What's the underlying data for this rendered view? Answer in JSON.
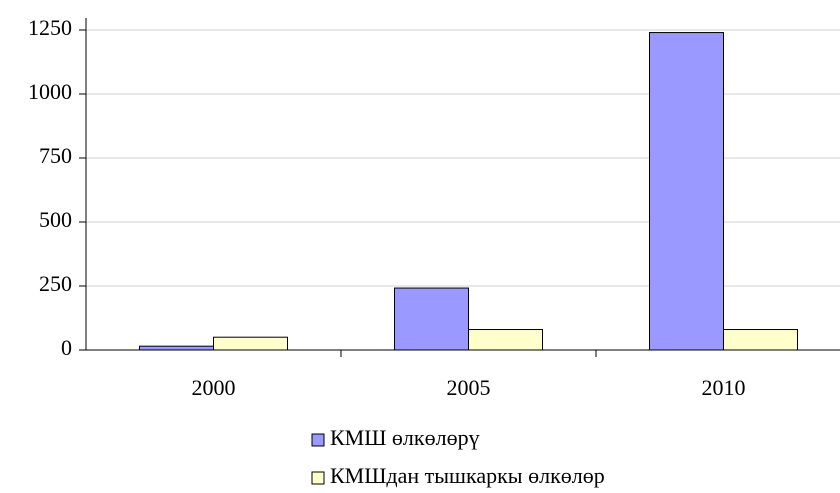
{
  "chart_data": {
    "type": "bar",
    "categories": [
      "2000",
      "2005",
      "2010"
    ],
    "series": [
      {
        "name": "КМШ өлкөлөрү",
        "color": "#9999ff",
        "values": [
          15,
          242,
          1240
        ]
      },
      {
        "name": "КМШдан тышкаркы өлкөлөр",
        "color": "#ffffcc",
        "values": [
          50,
          80,
          80
        ]
      }
    ],
    "ylim": [
      0,
      1250
    ],
    "yticks": [
      0,
      250,
      500,
      750,
      1000,
      1250
    ],
    "grid": true,
    "legend": "bottom"
  }
}
